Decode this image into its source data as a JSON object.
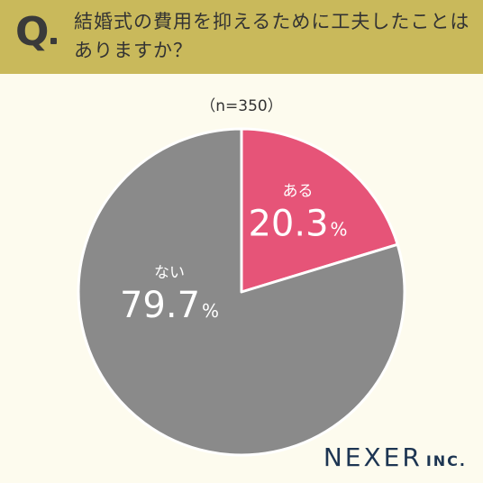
{
  "question": {
    "mark": "Q",
    "line1": "結婚式の費用を抑えるために工夫したことは",
    "line2": "ありますか？"
  },
  "sample_note": "（n=350）",
  "brand": {
    "name": "NEXER",
    "suffix": "INC."
  },
  "colors": {
    "header": "#c9b95b",
    "background": "#fdfbee",
    "aru": "#e65478",
    "nai": "#8a8a8a"
  },
  "chart_data": {
    "type": "pie",
    "title": "",
    "slices": [
      {
        "label": "ある",
        "value": 20.3,
        "value_text": "20.3",
        "unit": "%",
        "color": "#e65478"
      },
      {
        "label": "ない",
        "value": 79.7,
        "value_text": "79.7",
        "unit": "%",
        "color": "#8a8a8a"
      }
    ]
  }
}
